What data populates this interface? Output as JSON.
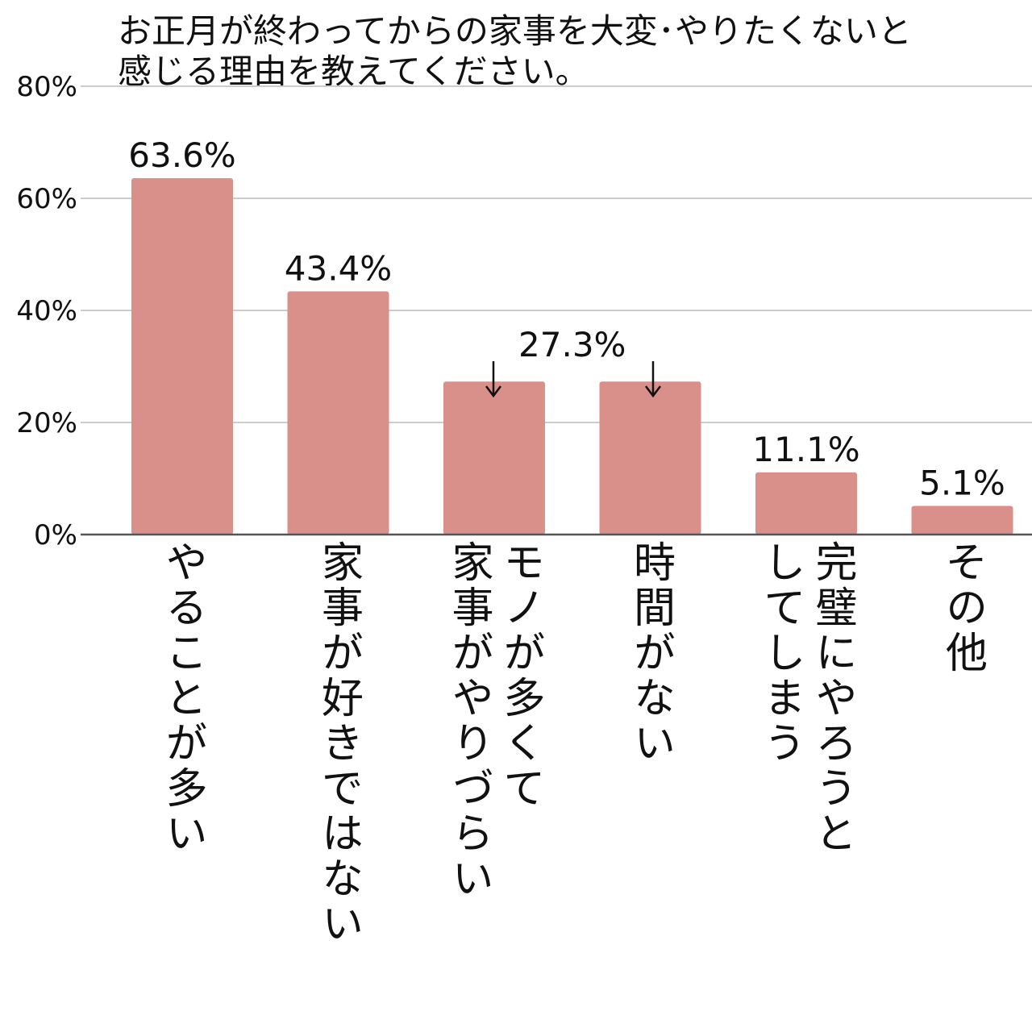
{
  "chart_data": {
    "type": "bar",
    "title_lines": [
      "お正月が終わってからの家事を大変･やりたくないと",
      "感じる理由を教えてください。"
    ],
    "categories": [
      "やることが多い",
      "家事が好きではない",
      "モノが多くて\n家事がやりづらい",
      "時間がない",
      "完璧にやろうと\nしてしまう",
      "その他"
    ],
    "values": [
      63.6,
      43.4,
      27.3,
      27.3,
      11.1,
      5.1
    ],
    "value_labels": [
      "63.6%",
      "43.4%",
      "",
      "",
      "11.1%",
      "5.1%"
    ],
    "shared_label": "27.3%",
    "y_ticks": [
      "0%",
      "20%",
      "40%",
      "60%",
      "80%"
    ],
    "y_tick_values": [
      0,
      20,
      40,
      60,
      80
    ],
    "ylim": [
      0,
      80
    ],
    "grid": true,
    "legend": "none",
    "colors": {
      "bar": "#d9908b",
      "grid": "#cccccc",
      "axis": "#555555"
    }
  }
}
